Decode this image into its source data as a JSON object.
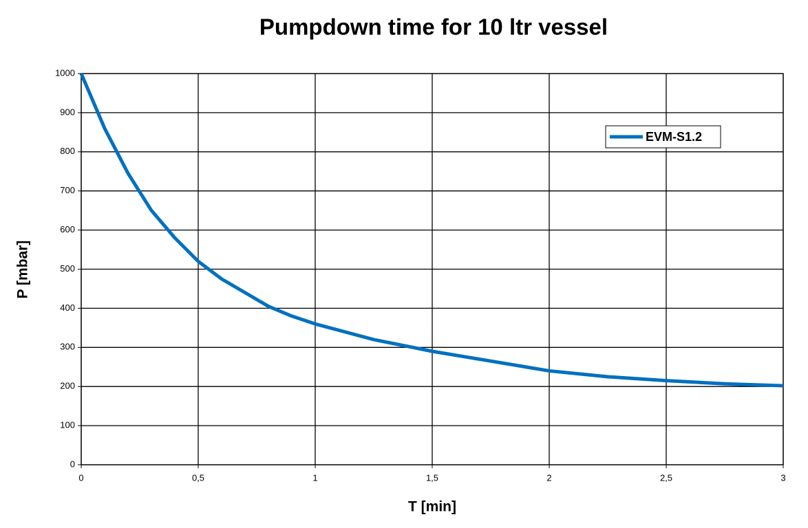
{
  "chart_data": {
    "type": "line",
    "title": "Pumpdown time for 10 ltr vessel",
    "x_label": "T [min]",
    "y_label": "P [mbar]",
    "x": [
      0,
      0.1,
      0.2,
      0.3,
      0.4,
      0.5,
      0.6,
      0.7,
      0.8,
      0.9,
      1.0,
      1.25,
      1.5,
      1.75,
      2.0,
      2.25,
      2.5,
      2.75,
      3.0
    ],
    "series": [
      {
        "name": "EVM-S1.2",
        "color": "#0070c0",
        "values": [
          1000,
          860,
          745,
          650,
          580,
          520,
          475,
          440,
          405,
          380,
          360,
          320,
          290,
          265,
          240,
          225,
          215,
          207,
          202
        ]
      }
    ],
    "xlim": [
      0,
      3
    ],
    "xticks": [
      0,
      {
        "value": 0.5,
        "label": "0,5"
      },
      1,
      {
        "value": 1.5,
        "label": "1,5"
      },
      2,
      {
        "value": 2.5,
        "label": "2,5"
      },
      3
    ],
    "ylim": [
      0,
      1000
    ],
    "yticks": [
      0,
      100,
      200,
      300,
      400,
      500,
      600,
      700,
      800,
      900,
      1000
    ],
    "grid": true,
    "legend": "upper right"
  }
}
